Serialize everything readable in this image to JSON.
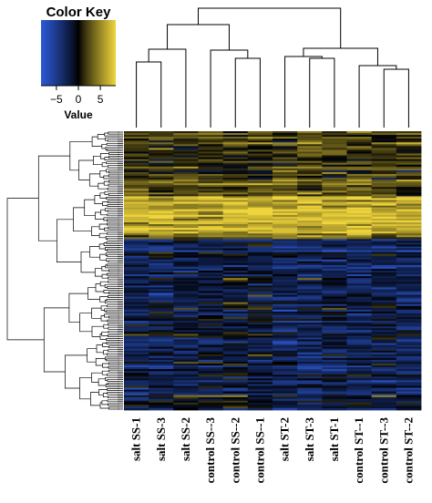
{
  "chart_data": {
    "type": "heatmap",
    "color_key": {
      "title": "Color Key",
      "label": "Value",
      "ticks": [
        -5,
        0,
        5
      ],
      "range": [
        -8.5,
        8.5
      ],
      "colors": {
        "low": "#2d5ad8",
        "mid": "#000000",
        "high": "#efd53c"
      }
    },
    "columns": [
      "salt SS-1",
      "salt SS-3",
      "salt SS-2",
      "control SS--3",
      "control SS--2",
      "control SS--1",
      "salt ST-2",
      "salt ST-3",
      "salt ST-1",
      "control ST--1",
      "control ST--3",
      "control ST--2"
    ],
    "column_dendrogram": true,
    "row_dendrogram": true
  }
}
